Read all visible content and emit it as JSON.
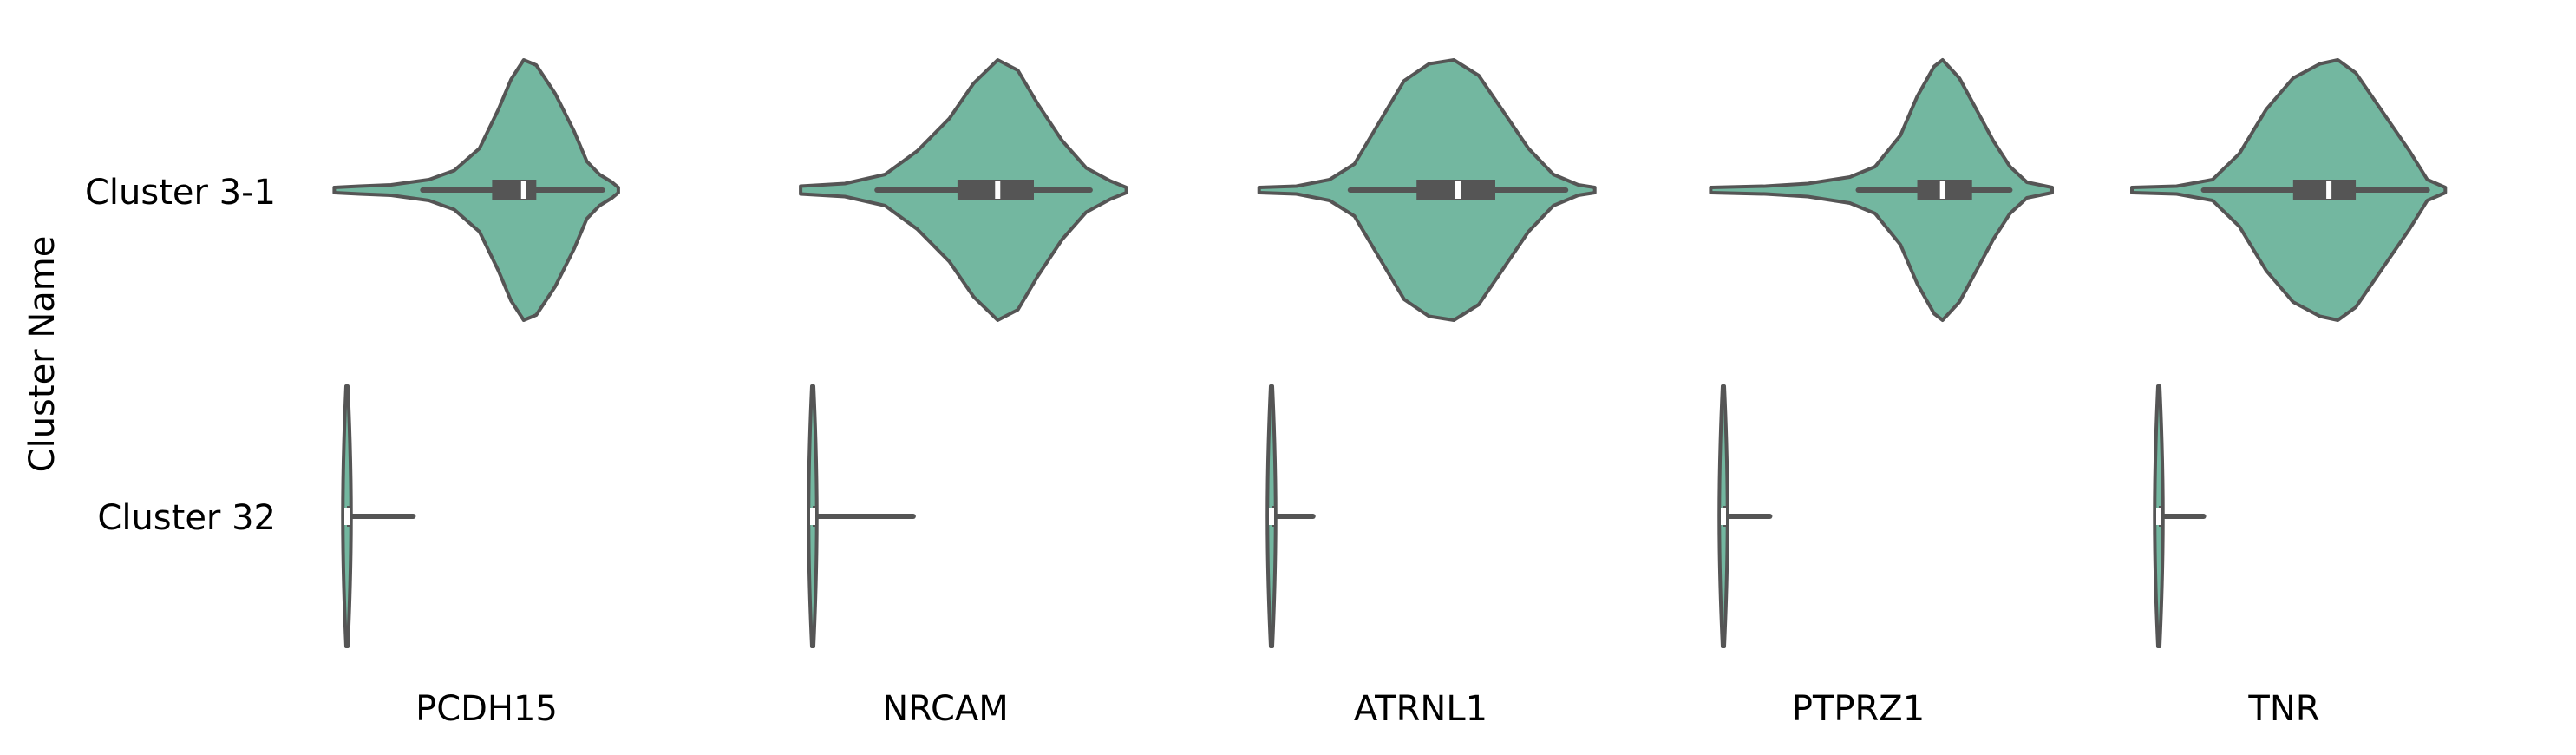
{
  "chart_data": {
    "type": "violin",
    "ylabel": "Cluster Name",
    "categories": [
      "Cluster 3-1",
      "Cluster 32"
    ],
    "genes": [
      "PCDH15",
      "NRCAM",
      "ATRNL1",
      "PTPRZ1",
      "TNR"
    ],
    "colors": {
      "fill": "#73b7a0",
      "edge": "#555555",
      "median": "#ffffff",
      "text": "#000000"
    },
    "panels": [
      {
        "gene": "PCDH15",
        "violins": [
          {
            "cluster": "Cluster 3-1",
            "scaled": true,
            "range": [
              -0.2,
              4.3
            ],
            "whisker": [
              1.2,
              4.05
            ],
            "q1": 2.3,
            "median": 2.8,
            "q3": 3.0,
            "density": [
              [
                -0.2,
                0.02
              ],
              [
                0.2,
                0.03
              ],
              [
                0.7,
                0.04
              ],
              [
                1.3,
                0.08
              ],
              [
                1.7,
                0.15
              ],
              [
                2.1,
                0.32
              ],
              [
                2.4,
                0.62
              ],
              [
                2.6,
                0.85
              ],
              [
                2.8,
                1.0
              ],
              [
                3.0,
                0.96
              ],
              [
                3.3,
                0.74
              ],
              [
                3.6,
                0.45
              ],
              [
                3.8,
                0.22
              ],
              [
                4.0,
                0.12
              ],
              [
                4.2,
                0.06
              ],
              [
                4.3,
                0.02
              ]
            ]
          },
          {
            "cluster": "Cluster 32",
            "scaled": false,
            "range": [
              -0.05,
              1.1
            ],
            "whisker": [
              0.0,
              1.05
            ],
            "q1": 0.0,
            "median": 0.0,
            "q3": 0.05,
            "density": [
              [
                -0.05,
                0.4
              ],
              [
                0.0,
                1.0
              ],
              [
                0.05,
                0.5
              ],
              [
                0.15,
                0.12
              ],
              [
                0.3,
                0.05
              ],
              [
                0.6,
                0.02
              ],
              [
                1.1,
                0.01
              ]
            ]
          }
        ]
      },
      {
        "gene": "NRCAM",
        "violins": [
          {
            "cluster": "Cluster 3-1",
            "scaled": true,
            "range": [
              -0.15,
              3.9
            ],
            "whisker": [
              0.8,
              3.45
            ],
            "q1": 1.8,
            "median": 2.3,
            "q3": 2.75,
            "density": [
              [
                -0.15,
                0.03
              ],
              [
                0.4,
                0.05
              ],
              [
                0.9,
                0.12
              ],
              [
                1.3,
                0.3
              ],
              [
                1.7,
                0.55
              ],
              [
                2.0,
                0.82
              ],
              [
                2.3,
                1.0
              ],
              [
                2.55,
                0.92
              ],
              [
                2.8,
                0.66
              ],
              [
                3.1,
                0.38
              ],
              [
                3.4,
                0.17
              ],
              [
                3.7,
                0.07
              ],
              [
                3.9,
                0.02
              ]
            ]
          },
          {
            "cluster": "Cluster 32",
            "scaled": false,
            "range": [
              -0.02,
              1.3
            ],
            "whisker": [
              0.0,
              1.25
            ],
            "q1": 0.0,
            "median": 0.0,
            "q3": 0.05,
            "density": [
              [
                -0.02,
                0.4
              ],
              [
                0.0,
                1.0
              ],
              [
                0.04,
                0.5
              ],
              [
                0.12,
                0.1
              ],
              [
                0.3,
                0.04
              ],
              [
                0.7,
                0.015
              ],
              [
                1.3,
                0.008
              ]
            ]
          }
        ]
      },
      {
        "gene": "ATRNL1",
        "violins": [
          {
            "cluster": "Cluster 3-1",
            "scaled": true,
            "range": [
              -0.15,
              3.9
            ],
            "whisker": [
              0.95,
              3.55
            ],
            "q1": 1.75,
            "median": 2.25,
            "q3": 2.7,
            "density": [
              [
                -0.15,
                0.02
              ],
              [
                0.3,
                0.03
              ],
              [
                0.7,
                0.08
              ],
              [
                1.0,
                0.2
              ],
              [
                1.3,
                0.52
              ],
              [
                1.6,
                0.84
              ],
              [
                1.9,
                0.97
              ],
              [
                2.2,
                1.0
              ],
              [
                2.5,
                0.88
              ],
              [
                2.8,
                0.6
              ],
              [
                3.1,
                0.32
              ],
              [
                3.4,
                0.12
              ],
              [
                3.7,
                0.04
              ],
              [
                3.9,
                0.02
              ]
            ]
          },
          {
            "cluster": "Cluster 32",
            "scaled": false,
            "range": [
              -0.05,
              0.5
            ],
            "whisker": [
              0.0,
              0.5
            ],
            "q1": 0.0,
            "median": 0.0,
            "q3": 0.04,
            "density": [
              [
                -0.05,
                0.4
              ],
              [
                0.0,
                1.0
              ],
              [
                0.04,
                0.5
              ],
              [
                0.12,
                0.08
              ],
              [
                0.25,
                0.03
              ],
              [
                0.5,
                0.01
              ]
            ]
          }
        ]
      },
      {
        "gene": "PTPRZ1",
        "violins": [
          {
            "cluster": "Cluster 3-1",
            "scaled": true,
            "range": [
              -0.15,
              3.9
            ],
            "whisker": [
              1.6,
              3.4
            ],
            "q1": 2.3,
            "median": 2.6,
            "q3": 2.95,
            "density": [
              [
                -0.15,
                0.02
              ],
              [
                0.5,
                0.03
              ],
              [
                1.0,
                0.05
              ],
              [
                1.5,
                0.1
              ],
              [
                1.8,
                0.18
              ],
              [
                2.1,
                0.42
              ],
              [
                2.3,
                0.72
              ],
              [
                2.5,
                0.95
              ],
              [
                2.6,
                1.0
              ],
              [
                2.8,
                0.86
              ],
              [
                3.0,
                0.62
              ],
              [
                3.2,
                0.38
              ],
              [
                3.4,
                0.18
              ],
              [
                3.6,
                0.06
              ],
              [
                3.9,
                0.02
              ]
            ]
          },
          {
            "cluster": "Cluster 32",
            "scaled": false,
            "range": [
              -0.02,
              0.55
            ],
            "whisker": [
              0.0,
              0.55
            ],
            "q1": 0.0,
            "median": 0.0,
            "q3": 0.03,
            "density": [
              [
                -0.02,
                0.4
              ],
              [
                0.0,
                1.0
              ],
              [
                0.03,
                0.5
              ],
              [
                0.1,
                0.08
              ],
              [
                0.25,
                0.03
              ],
              [
                0.55,
                0.01
              ]
            ]
          }
        ]
      },
      {
        "gene": "TNR",
        "violins": [
          {
            "cluster": "Cluster 3-1",
            "scaled": true,
            "range": [
              -0.3,
              3.2
            ],
            "whisker": [
              0.5,
              3.0
            ],
            "q1": 1.5,
            "median": 1.9,
            "q3": 2.2,
            "density": [
              [
                -0.3,
                0.02
              ],
              [
                0.2,
                0.03
              ],
              [
                0.6,
                0.08
              ],
              [
                0.9,
                0.28
              ],
              [
                1.2,
                0.62
              ],
              [
                1.5,
                0.86
              ],
              [
                1.8,
                0.97
              ],
              [
                2.0,
                1.0
              ],
              [
                2.2,
                0.9
              ],
              [
                2.5,
                0.6
              ],
              [
                2.8,
                0.3
              ],
              [
                3.0,
                0.08
              ],
              [
                3.2,
                0.02
              ]
            ]
          },
          {
            "cluster": "Cluster 32",
            "scaled": false,
            "range": [
              -0.02,
              0.5
            ],
            "whisker": [
              0.0,
              0.5
            ],
            "q1": 0.0,
            "median": 0.0,
            "q3": 0.03,
            "density": [
              [
                -0.02,
                0.4
              ],
              [
                0.0,
                1.0
              ],
              [
                0.03,
                0.5
              ],
              [
                0.1,
                0.08
              ],
              [
                0.25,
                0.03
              ],
              [
                0.5,
                0.01
              ]
            ]
          }
        ]
      }
    ]
  }
}
